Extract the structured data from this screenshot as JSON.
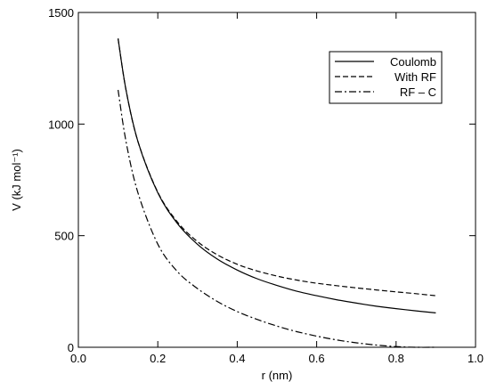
{
  "chart_data": {
    "type": "line",
    "xlabel": "r (nm)",
    "ylabel": "V (kJ mol⁻¹)",
    "xlim": [
      0.0,
      1.0
    ],
    "ylim": [
      0,
      1500
    ],
    "xticks": [
      0.0,
      0.2,
      0.4,
      0.6,
      0.8,
      1.0
    ],
    "xtick_labels": [
      "0.0",
      "0.2",
      "0.4",
      "0.6",
      "0.8",
      "1.0"
    ],
    "yticks": [
      0,
      500,
      1000,
      1500
    ],
    "ytick_labels": [
      "0",
      "500",
      "1000",
      "1500"
    ],
    "grid": false,
    "legend_position": "top-right",
    "series": [
      {
        "name": "Coulomb",
        "line_style": "solid",
        "color": "#000000",
        "x": [
          0.1,
          0.12,
          0.15,
          0.2,
          0.25,
          0.3,
          0.35,
          0.4,
          0.45,
          0.5,
          0.55,
          0.6,
          0.65,
          0.7,
          0.75,
          0.8,
          0.85,
          0.9
        ],
        "y": [
          1383,
          1153,
          922,
          692,
          553,
          461,
          395,
          346,
          307,
          277,
          251,
          231,
          213,
          198,
          184,
          173,
          163,
          154
        ]
      },
      {
        "name": "With RF",
        "line_style": "dashed",
        "color": "#000000",
        "x": [
          0.1,
          0.12,
          0.15,
          0.2,
          0.25,
          0.3,
          0.35,
          0.4,
          0.45,
          0.5,
          0.55,
          0.6,
          0.65,
          0.7,
          0.75,
          0.8,
          0.85,
          0.9
        ],
        "y": [
          1383,
          1153,
          922,
          695,
          560,
          473,
          414,
          372,
          342,
          319,
          301,
          287,
          276,
          266,
          257,
          248,
          240,
          231
        ]
      },
      {
        "name": "RF – C",
        "line_style": "dashdot",
        "color": "#000000",
        "x": [
          0.1,
          0.12,
          0.15,
          0.2,
          0.25,
          0.3,
          0.35,
          0.4,
          0.45,
          0.5,
          0.55,
          0.6,
          0.65,
          0.7,
          0.75,
          0.8,
          0.85,
          0.9
        ],
        "y": [
          1153,
          922,
          692,
          462,
          338,
          263,
          205,
          160,
          125,
          95,
          70,
          50,
          33,
          20,
          10,
          3,
          0,
          0
        ]
      }
    ]
  }
}
